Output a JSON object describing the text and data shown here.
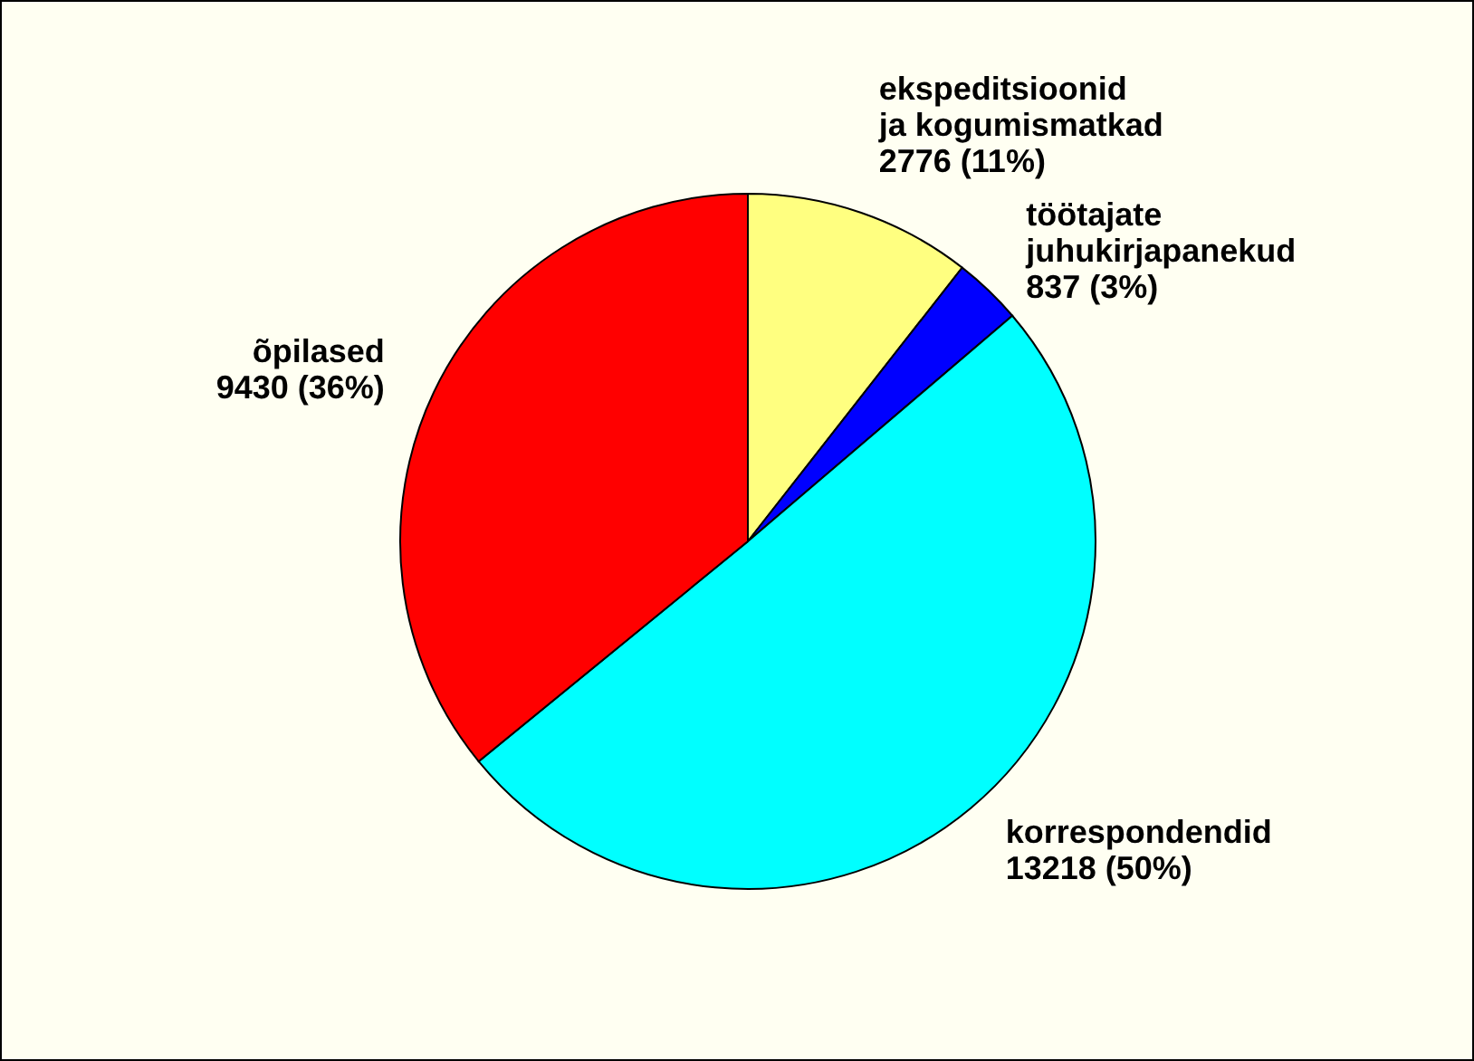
{
  "chart_data": {
    "type": "pie",
    "categories": [
      "ekspeditsioonid\nja kogumismatkad",
      "töötajate\njuhukirjapanekud",
      "korrespondendid",
      "õpilased"
    ],
    "values": [
      2776,
      837,
      13218,
      9430
    ],
    "colors": [
      "#ffff80",
      "#0000ff",
      "#00ffff",
      "#ff0000"
    ],
    "value_labels": [
      "2776 (11%)",
      "837 (3%)",
      "13218 (50%)",
      "9430 (36%)"
    ]
  }
}
